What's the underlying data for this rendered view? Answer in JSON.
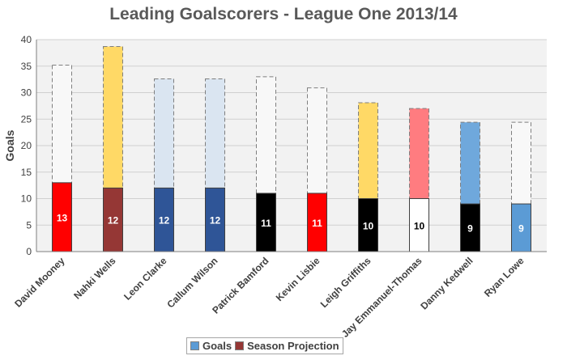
{
  "chart_data": {
    "type": "bar",
    "title": "Leading Goalscorers - League One 2013/14",
    "ylabel": "Goals",
    "xlabel": "",
    "ylim": [
      0,
      40
    ],
    "yticks": [
      0,
      5,
      10,
      15,
      20,
      25,
      30,
      35,
      40
    ],
    "grid": true,
    "legend_position": "bottom",
    "categories": [
      "David Mooney",
      "Nahki Wells",
      "Leon Clarke",
      "Callum Wilson",
      "Patrick Bamford",
      "Kevin Lisbie",
      "Leigh Griffiths",
      "Jay Emmanuel-Thomas",
      "Danny Kedwell",
      "Ryan Lowe"
    ],
    "series": [
      {
        "name": "Goals",
        "values": [
          13,
          12,
          12,
          12,
          11,
          11,
          10,
          10,
          9,
          9
        ],
        "colors": [
          "#ff0000",
          "#953735",
          "#2f5597",
          "#2f5597",
          "#000000",
          "#ff0000",
          "#000000",
          "#ffffff",
          "#000000",
          "#5b9bd5"
        ],
        "label_colors": [
          "#ffffff",
          "#ffffff",
          "#ffffff",
          "#ffffff",
          "#ffffff",
          "#ffffff",
          "#ffffff",
          "#000000",
          "#ffffff",
          "#ffffff"
        ]
      },
      {
        "name": "Season Projection",
        "values": [
          35.2,
          38.7,
          32.6,
          32.6,
          33.0,
          30.9,
          28.1,
          27.0,
          24.4,
          24.4
        ],
        "colors": [
          "#f8f8f8",
          "#ffd966",
          "#dae5f1",
          "#dae5f1",
          "#f8f8f8",
          "#f8f8f8",
          "#ffd966",
          "#ff7c80",
          "#6fa8dc",
          "#f8f8f8"
        ]
      }
    ]
  },
  "legend": {
    "goals_label": "Goals",
    "projection_label": "Season Projection",
    "goals_color": "#5b9bd5",
    "projection_color": "#953735"
  }
}
